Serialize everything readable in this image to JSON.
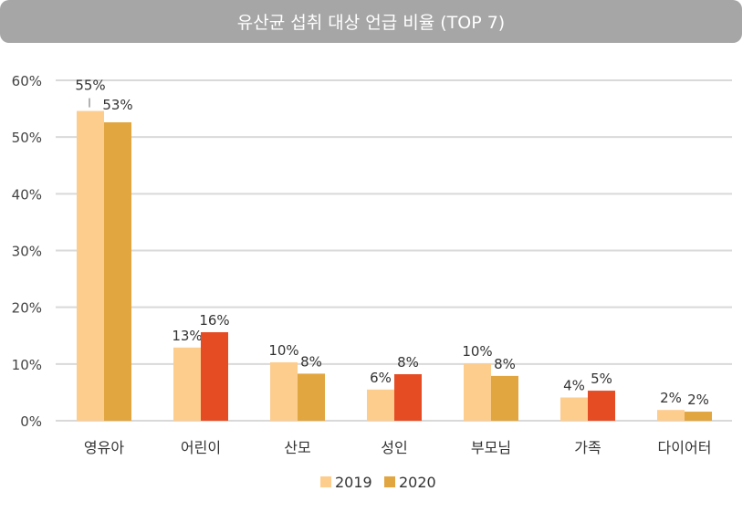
{
  "chart_data": {
    "type": "bar",
    "title": "유산균 섭취 대상 언급 비율 (TOP 7)",
    "categories": [
      "영유아",
      "어린이",
      "산모",
      "성인",
      "부모님",
      "가족",
      "다이어터"
    ],
    "series": [
      {
        "name": "2019",
        "color": "#FDCD8E",
        "values": [
          54.6,
          12.9,
          10.3,
          5.5,
          10.1,
          4.1,
          1.9
        ],
        "labels": [
          "55%",
          "13%",
          "10%",
          "6%",
          "10%",
          "4%",
          "2%"
        ]
      },
      {
        "name": "2020",
        "color": "#E2A641",
        "highlight_color": "#E64C24",
        "highlighted": [
          false,
          true,
          false,
          true,
          false,
          true,
          false
        ],
        "values": [
          52.6,
          15.6,
          8.3,
          8.2,
          7.9,
          5.3,
          1.6
        ],
        "labels": [
          "53%",
          "16%",
          "8%",
          "8%",
          "8%",
          "5%",
          "2%"
        ]
      }
    ],
    "yticks": [
      "0%",
      "10%",
      "20%",
      "30%",
      "40%",
      "50%",
      "60%"
    ],
    "ylim": [
      0,
      60
    ],
    "grid": true,
    "legend": "bottom"
  }
}
